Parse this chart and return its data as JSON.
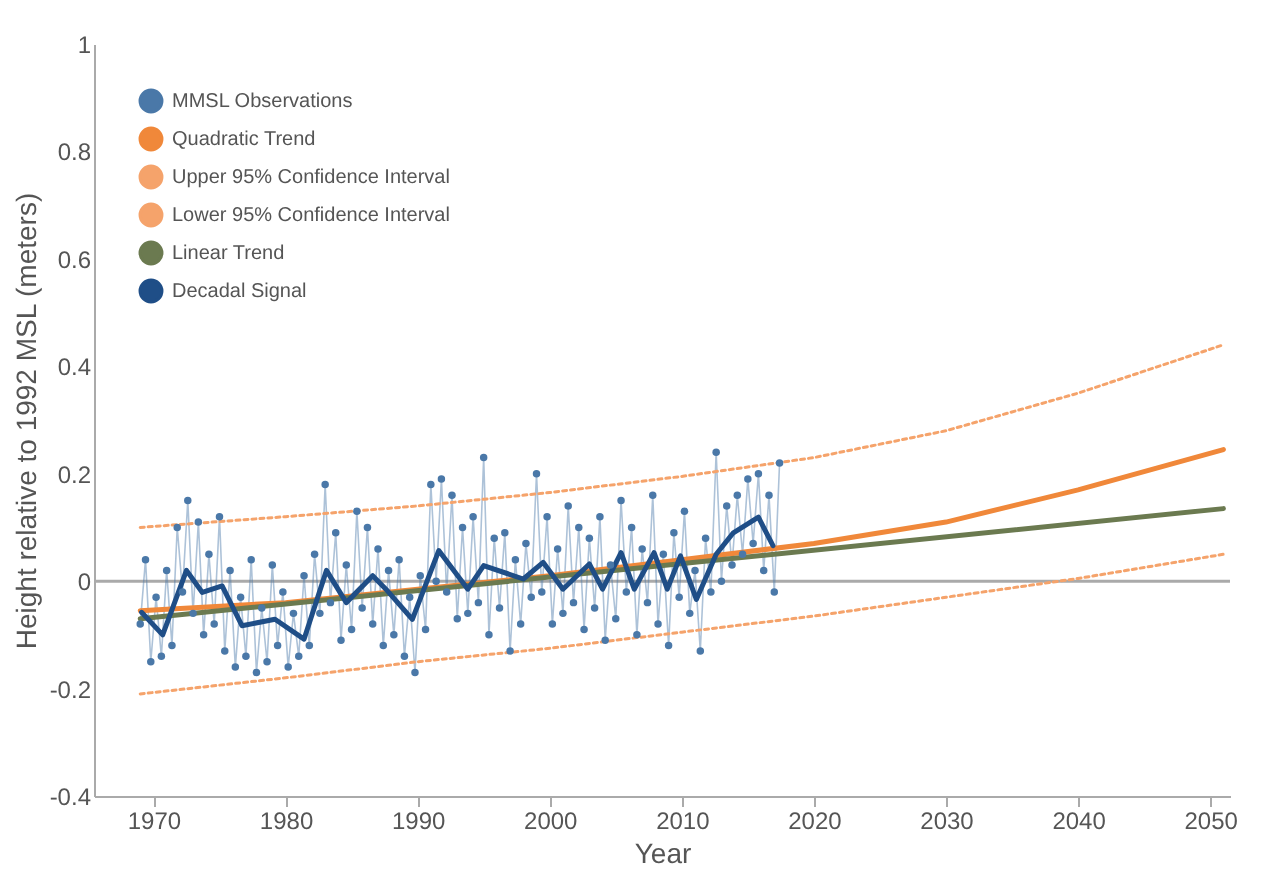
{
  "chart_data": {
    "type": "line",
    "xlabel": "Year",
    "ylabel": "Height relative to 1992 MSL (meters)",
    "xlim": [
      1965.5,
      2051.5
    ],
    "xticks": [
      1970,
      1980,
      1990,
      2000,
      2010,
      2020,
      2030,
      2040,
      2050
    ],
    "ylim": [
      -0.4,
      1
    ],
    "yticks": [
      -0.4,
      -0.2,
      0,
      0.2,
      0.4,
      0.6,
      0.8,
      1
    ],
    "grid": false,
    "legend": "top left",
    "ref_lines": [
      {
        "axis": "y",
        "value": 0,
        "color": "#aaaaaa"
      }
    ],
    "series": [
      {
        "name": "MMSL Observations",
        "color": "#4a78a8",
        "marker": "circle",
        "line_style": "solid",
        "x": [
          1969.0,
          1969.4,
          1969.8,
          1970.2,
          1970.6,
          1971.0,
          1971.4,
          1971.8,
          1972.2,
          1972.6,
          1973.0,
          1973.4,
          1973.8,
          1974.2,
          1974.6,
          1975.0,
          1975.4,
          1975.8,
          1976.2,
          1976.6,
          1977.0,
          1977.4,
          1977.8,
          1978.2,
          1978.6,
          1979.0,
          1979.4,
          1979.8,
          1980.2,
          1980.6,
          1981.0,
          1981.4,
          1981.8,
          1982.2,
          1982.6,
          1983.0,
          1983.4,
          1983.8,
          1984.2,
          1984.6,
          1985.0,
          1985.4,
          1985.8,
          1986.2,
          1986.6,
          1987.0,
          1987.4,
          1987.8,
          1988.2,
          1988.6,
          1989.0,
          1989.4,
          1989.8,
          1990.2,
          1990.6,
          1991.0,
          1991.4,
          1991.8,
          1992.2,
          1992.6,
          1993.0,
          1993.4,
          1993.8,
          1994.2,
          1994.6,
          1995.0,
          1995.4,
          1995.8,
          1996.2,
          1996.6,
          1997.0,
          1997.4,
          1997.8,
          1998.2,
          1998.6,
          1999.0,
          1999.4,
          1999.8,
          2000.2,
          2000.6,
          2001.0,
          2001.4,
          2001.8,
          2002.2,
          2002.6,
          2003.0,
          2003.4,
          2003.8,
          2004.2,
          2004.6,
          2005.0,
          2005.4,
          2005.8,
          2006.2,
          2006.6,
          2007.0,
          2007.4,
          2007.8,
          2008.2,
          2008.6,
          2009.0,
          2009.4,
          2009.8,
          2010.2,
          2010.6,
          2011.0,
          2011.4,
          2011.8,
          2012.2,
          2012.6,
          2013.0,
          2013.4,
          2013.8,
          2014.2,
          2014.6,
          2015.0,
          2015.4,
          2015.8,
          2016.2,
          2016.6,
          2017.0,
          2017.4
        ],
        "values": [
          -0.08,
          0.04,
          -0.15,
          -0.03,
          -0.14,
          0.02,
          -0.12,
          0.1,
          -0.02,
          0.15,
          -0.06,
          0.11,
          -0.1,
          0.05,
          -0.08,
          0.12,
          -0.13,
          0.02,
          -0.16,
          -0.03,
          -0.14,
          0.04,
          -0.17,
          -0.05,
          -0.15,
          0.03,
          -0.12,
          -0.02,
          -0.16,
          -0.06,
          -0.14,
          0.01,
          -0.12,
          0.05,
          -0.06,
          0.18,
          -0.04,
          0.09,
          -0.11,
          0.03,
          -0.09,
          0.13,
          -0.05,
          0.1,
          -0.08,
          0.06,
          -0.12,
          0.02,
          -0.1,
          0.04,
          -0.14,
          -0.03,
          -0.17,
          0.01,
          -0.09,
          0.18,
          0.0,
          0.19,
          -0.02,
          0.16,
          -0.07,
          0.1,
          -0.06,
          0.12,
          -0.04,
          0.23,
          -0.1,
          0.08,
          -0.05,
          0.09,
          -0.13,
          0.04,
          -0.08,
          0.07,
          -0.03,
          0.2,
          -0.02,
          0.12,
          -0.08,
          0.06,
          -0.06,
          0.14,
          -0.04,
          0.1,
          -0.09,
          0.08,
          -0.05,
          0.12,
          -0.11,
          0.03,
          -0.07,
          0.15,
          -0.02,
          0.1,
          -0.1,
          0.06,
          -0.04,
          0.16,
          -0.08,
          0.05,
          -0.12,
          0.09,
          -0.03,
          0.13,
          -0.06,
          0.02,
          -0.13,
          0.08,
          -0.02,
          0.24,
          0.0,
          0.14,
          0.03,
          0.16,
          0.05,
          0.19,
          0.07,
          0.2,
          0.02,
          0.16,
          -0.02,
          0.22
        ]
      },
      {
        "name": "Quadratic Trend",
        "color": "#f0883a",
        "line_style": "solid",
        "x": [
          1969,
          1980,
          1990,
          2000,
          2010,
          2020,
          2030,
          2040,
          2051
        ],
        "values": [
          -0.055,
          -0.04,
          -0.015,
          0.01,
          0.04,
          0.07,
          0.11,
          0.17,
          0.245
        ]
      },
      {
        "name": "Upper 95% Confidence Interval",
        "color": "#f5a36b",
        "line_style": "dotted",
        "x": [
          1969,
          1980,
          1990,
          2000,
          2010,
          2020,
          2030,
          2040,
          2051
        ],
        "values": [
          0.1,
          0.12,
          0.14,
          0.165,
          0.195,
          0.23,
          0.28,
          0.35,
          0.44
        ]
      },
      {
        "name": "Lower 95% Confidence Interval",
        "color": "#f5a36b",
        "line_style": "dotted",
        "x": [
          1969,
          1980,
          1990,
          2000,
          2010,
          2020,
          2030,
          2040,
          2051
        ],
        "values": [
          -0.21,
          -0.18,
          -0.15,
          -0.125,
          -0.095,
          -0.065,
          -0.03,
          0.005,
          0.05
        ]
      },
      {
        "name": "Linear Trend",
        "color": "#6b7a50",
        "line_style": "solid",
        "x": [
          1969,
          2051
        ],
        "values": [
          -0.07,
          0.135
        ]
      },
      {
        "name": "Decadal Signal",
        "color": "#1f4e87",
        "line_style": "solid",
        "x": [
          1969.1,
          1970.7,
          1972.5,
          1973.7,
          1975.2,
          1976.7,
          1979.2,
          1981.4,
          1983.1,
          1984.6,
          1986.6,
          1987.6,
          1989.6,
          1991.6,
          1993.8,
          1995.0,
          1998.0,
          1999.5,
          2001.0,
          2003.0,
          2004.0,
          2005.4,
          2006.4,
          2007.9,
          2008.9,
          2009.9,
          2011.1,
          2012.6,
          2013.9,
          2015.8,
          2016.9
        ],
        "values": [
          -0.058,
          -0.1,
          0.02,
          -0.021,
          -0.009,
          -0.083,
          -0.071,
          -0.108,
          0.02,
          -0.04,
          0.01,
          -0.015,
          -0.071,
          0.057,
          -0.015,
          0.029,
          0.004,
          0.035,
          -0.015,
          0.032,
          -0.015,
          0.053,
          -0.015,
          0.053,
          -0.015,
          0.047,
          -0.034,
          0.05,
          0.09,
          0.119,
          0.066
        ]
      }
    ]
  }
}
